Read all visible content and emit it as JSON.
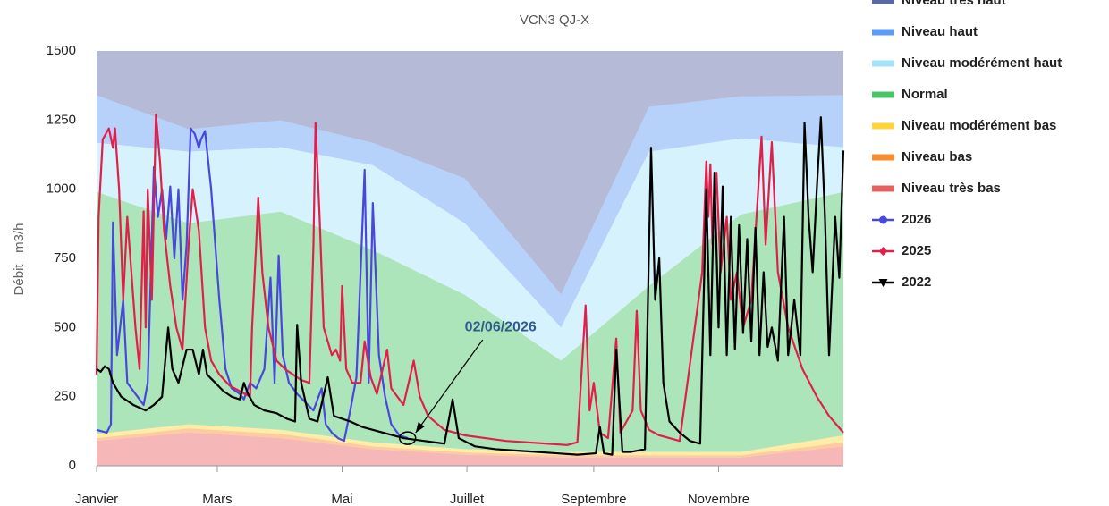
{
  "chart_data": {
    "type": "area",
    "subtitle": "VCN3 QJ-X",
    "y_label": "Débit   m3/h",
    "xlim": [
      0,
      365
    ],
    "xticks": [
      {
        "value": 0,
        "label": "Janvier"
      },
      {
        "value": 59,
        "label": "Mars"
      },
      {
        "value": 120,
        "label": "Mai"
      },
      {
        "value": 181,
        "label": "Juillet"
      },
      {
        "value": 243,
        "label": "Septembre"
      },
      {
        "value": 304,
        "label": "Novembre"
      }
    ],
    "ylim": [
      0,
      1500
    ],
    "yticks": [
      0,
      250,
      500,
      750,
      1000,
      1250,
      1500
    ],
    "stacked": true,
    "x": [
      0,
      45,
      90,
      135,
      180,
      227,
      270,
      315,
      365
    ],
    "series": [
      {
        "name": "Niveau très haut",
        "color": "#5b67a6",
        "values": [
          160,
          283,
          251,
          332,
          461,
          880,
          202,
          164,
          160
        ]
      },
      {
        "name": "Niveau haut",
        "color": "#5d9cf5",
        "values": [
          172,
          81,
          97,
          81,
          162,
          120,
          162,
          152,
          188
        ]
      },
      {
        "name": "Niveau modérément haut",
        "color": "#a3e3fa",
        "values": [
          178,
          259,
          233,
          307,
          259,
          120,
          486,
          275,
          162
        ]
      },
      {
        "name": "Normal",
        "color": "#47c567",
        "values": [
          875,
          727,
          789,
          695,
          558,
          330,
          600,
          859,
          880
        ]
      },
      {
        "name": "Niveau modérément bas",
        "color": "#ffd43b",
        "values": [
          15,
          15,
          15,
          15,
          12,
          12,
          12,
          12,
          25
        ]
      },
      {
        "name": "Niveau bas",
        "color": "#f98c2f",
        "values": [
          10,
          15,
          15,
          10,
          8,
          8,
          8,
          8,
          15
        ]
      },
      {
        "name": "Niveau très bas",
        "color": "#e86060",
        "values": [
          90,
          120,
          100,
          60,
          40,
          30,
          30,
          30,
          70
        ]
      }
    ],
    "lines": [
      {
        "name": "2026",
        "color": "#4848dc",
        "marker": "circle",
        "x": [
          0,
          5,
          7,
          8,
          10,
          13,
          15,
          20,
          23,
          25,
          28,
          30,
          32,
          34,
          36,
          38,
          40,
          42,
          44,
          46,
          48,
          50,
          51,
          53,
          56,
          60,
          63,
          66,
          70,
          72,
          75,
          78,
          82,
          85,
          87,
          89,
          91,
          94,
          98,
          102,
          106,
          110,
          112,
          115,
          118,
          121,
          124,
          127,
          131,
          133,
          135,
          138,
          141,
          144,
          148,
          152
        ],
        "values": [
          130,
          120,
          150,
          880,
          400,
          600,
          300,
          250,
          220,
          300,
          1080,
          900,
          1000,
          820,
          1010,
          750,
          1000,
          600,
          800,
          1220,
          1200,
          1150,
          1180,
          1210,
          1000,
          600,
          350,
          280,
          260,
          240,
          300,
          280,
          350,
          680,
          300,
          760,
          400,
          300,
          260,
          230,
          200,
          280,
          150,
          120,
          100,
          90,
          200,
          320,
          1070,
          300,
          950,
          400,
          250,
          150,
          110,
          100
        ]
      },
      {
        "name": "2025",
        "color": "#e0204a",
        "marker": "diamond",
        "x": [
          0,
          1,
          3,
          6,
          8,
          9,
          11,
          13,
          15,
          17,
          19,
          21,
          23,
          24,
          25,
          27,
          29,
          31,
          33,
          36,
          39,
          42,
          45,
          47,
          50,
          53,
          56,
          60,
          65,
          70,
          75,
          76,
          78,
          79,
          81,
          84,
          88,
          92,
          96,
          100,
          104,
          106,
          107,
          109,
          111,
          113,
          115,
          117,
          119,
          120,
          122,
          125,
          129,
          131,
          134,
          137,
          142,
          144,
          150,
          155,
          158,
          162,
          170,
          180,
          190,
          200,
          210,
          220,
          230,
          235,
          239,
          241,
          243,
          246,
          250,
          254,
          256,
          262,
          264,
          266,
          270,
          275,
          280,
          285,
          296,
          298,
          299,
          300,
          301,
          303,
          305,
          308,
          310,
          313,
          316,
          320,
          325,
          327,
          330,
          333,
          338,
          345,
          352,
          358,
          365
        ],
        "values": [
          330,
          900,
          1180,
          1220,
          1150,
          1220,
          1000,
          600,
          900,
          700,
          500,
          350,
          920,
          500,
          1000,
          600,
          1270,
          1100,
          850,
          650,
          500,
          420,
          800,
          1000,
          850,
          500,
          380,
          330,
          290,
          270,
          250,
          500,
          800,
          970,
          700,
          500,
          380,
          350,
          330,
          310,
          300,
          800,
          1240,
          900,
          500,
          450,
          400,
          420,
          380,
          650,
          350,
          300,
          300,
          450,
          320,
          260,
          420,
          280,
          220,
          380,
          250,
          180,
          130,
          110,
          100,
          90,
          85,
          80,
          75,
          85,
          580,
          200,
          300,
          120,
          100,
          460,
          120,
          200,
          560,
          200,
          130,
          110,
          100,
          90,
          700,
          1100,
          900,
          1090,
          800,
          1060,
          700,
          900,
          600,
          700,
          500,
          600,
          1190,
          800,
          1170,
          700,
          500,
          350,
          250,
          180,
          120
        ]
      },
      {
        "name": "2022",
        "color": "#000000",
        "marker": "triangle-down",
        "x": [
          0,
          2,
          4,
          6,
          8,
          12,
          18,
          24,
          28,
          32,
          35,
          37,
          40,
          44,
          47,
          50,
          52,
          54,
          58,
          62,
          66,
          70,
          72,
          74,
          77,
          82,
          88,
          93,
          97,
          98,
          100,
          104,
          108,
          113,
          116,
          120,
          124,
          130,
          140,
          150,
          160,
          170,
          174,
          177,
          185,
          195,
          205,
          215,
          225,
          235,
          244,
          246,
          248,
          252,
          254,
          257,
          261,
          268,
          271,
          273,
          275,
          277,
          280,
          285,
          290,
          295,
          298,
          300,
          302,
          304,
          306,
          308,
          310,
          312,
          314,
          316,
          318,
          320,
          322,
          324,
          326,
          328,
          330,
          333,
          336,
          338,
          341,
          344,
          346,
          348,
          350,
          352,
          354,
          356,
          358,
          361,
          363,
          365
        ],
        "values": [
          350,
          340,
          360,
          350,
          300,
          250,
          220,
          200,
          220,
          250,
          500,
          350,
          300,
          420,
          420,
          330,
          420,
          330,
          300,
          270,
          250,
          240,
          300,
          260,
          220,
          200,
          190,
          170,
          160,
          510,
          300,
          170,
          160,
          320,
          180,
          170,
          160,
          140,
          120,
          100,
          90,
          80,
          240,
          100,
          70,
          60,
          55,
          50,
          45,
          40,
          45,
          140,
          45,
          40,
          420,
          50,
          50,
          60,
          1150,
          600,
          750,
          300,
          160,
          120,
          90,
          80,
          1000,
          400,
          1060,
          500,
          1010,
          400,
          900,
          420,
          870,
          480,
          820,
          450,
          860,
          400,
          700,
          430,
          500,
          380,
          900,
          400,
          600,
          400,
          1240,
          900,
          700,
          1000,
          1260,
          900,
          400,
          900,
          680,
          1140
        ]
      }
    ],
    "annotation": {
      "text": "02/06/2026",
      "x": 152,
      "y": 100
    }
  }
}
